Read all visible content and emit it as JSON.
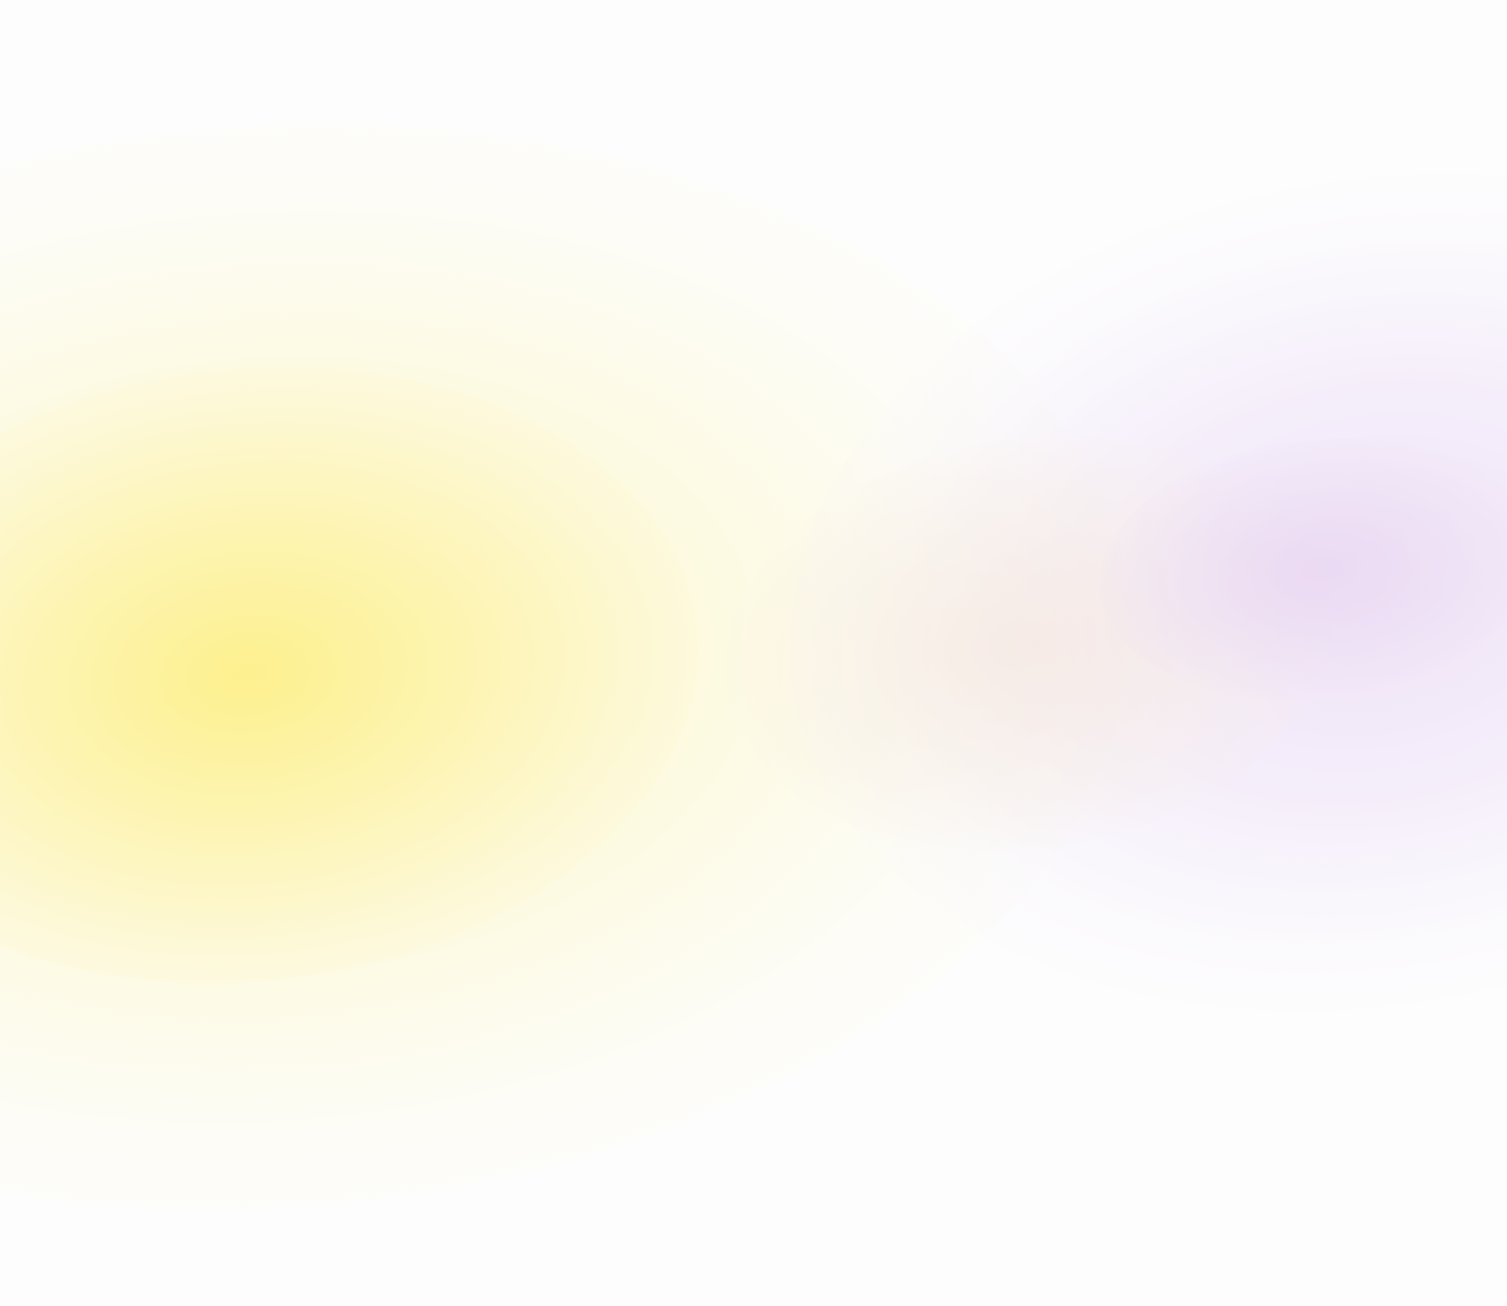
{
  "background": {
    "base_color": "#fdfdfd",
    "glows": [
      {
        "name": "yellow-glow",
        "color": "#fdf28f"
      },
      {
        "name": "peach-glow",
        "color": "#f6e8de"
      },
      {
        "name": "purple-glow",
        "color": "#ecd8f2"
      }
    ]
  }
}
